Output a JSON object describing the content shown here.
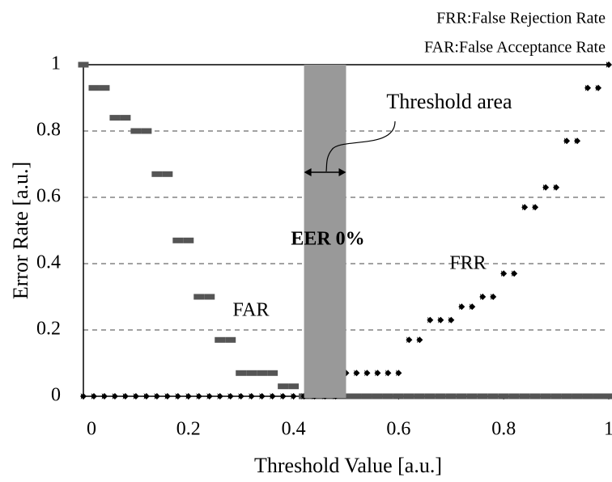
{
  "chart_data": {
    "type": "scatter",
    "notes": [
      "FRR:False Rejection Rate",
      "FAR:False Acceptance Rate"
    ],
    "x_label": "Threshold Value [a.u.]",
    "y_label": "Error Rate [a.u.]",
    "annotations": {
      "threshold": "Threshold area",
      "eer": "EER 0%",
      "far": "FAR",
      "frr": "FRR"
    },
    "threshold_band": [
      0.42,
      0.5
    ],
    "band_color": "#999999",
    "x": [
      0,
      0.02,
      0.04,
      0.06,
      0.08,
      0.1,
      0.12,
      0.14,
      0.16,
      0.18,
      0.2,
      0.22,
      0.24,
      0.26,
      0.28,
      0.3,
      0.32,
      0.34,
      0.36,
      0.38,
      0.4,
      0.42,
      0.44,
      0.46,
      0.48,
      0.5,
      0.52,
      0.54,
      0.56,
      0.58,
      0.6,
      0.62,
      0.64,
      0.66,
      0.68,
      0.7,
      0.72,
      0.74,
      0.76,
      0.78,
      0.8,
      0.82,
      0.84,
      0.86,
      0.88,
      0.9,
      0.92,
      0.94,
      0.96,
      0.98,
      1
    ],
    "series": [
      {
        "name": "FAR",
        "color": "#555555",
        "marker": "bar",
        "values": [
          1,
          0.93,
          0.93,
          0.84,
          0.84,
          0.8,
          0.8,
          0.67,
          0.67,
          0.47,
          0.47,
          0.3,
          0.3,
          0.17,
          0.17,
          0.07,
          0.07,
          0.07,
          0.07,
          0.03,
          0.03,
          0,
          0,
          0,
          0,
          0,
          0,
          0,
          0,
          0,
          0,
          0,
          0,
          0,
          0,
          0,
          0,
          0,
          0,
          0,
          0,
          0,
          0,
          0,
          0,
          0,
          0,
          0,
          0,
          0,
          0
        ]
      },
      {
        "name": "FRR",
        "color": "#000000",
        "marker": "diamond",
        "values": [
          0,
          0,
          0,
          0,
          0,
          0,
          0,
          0,
          0,
          0,
          0,
          0,
          0,
          0,
          0,
          0,
          0,
          0,
          0,
          0,
          0,
          0,
          0,
          0,
          0,
          0.07,
          0.07,
          0.07,
          0.07,
          0.07,
          0.07,
          0.17,
          0.17,
          0.23,
          0.23,
          0.23,
          0.27,
          0.27,
          0.3,
          0.3,
          0.37,
          0.37,
          0.57,
          0.57,
          0.63,
          0.63,
          0.77,
          0.77,
          0.93,
          0.93,
          1
        ]
      }
    ],
    "xlim": [
      0,
      1
    ],
    "ylim": [
      0,
      1
    ],
    "xticks": [
      0,
      0.2,
      0.4,
      0.6,
      0.8,
      1
    ],
    "yticks": [
      0,
      0.2,
      0.4,
      0.6,
      0.8,
      1
    ],
    "grid": true
  }
}
